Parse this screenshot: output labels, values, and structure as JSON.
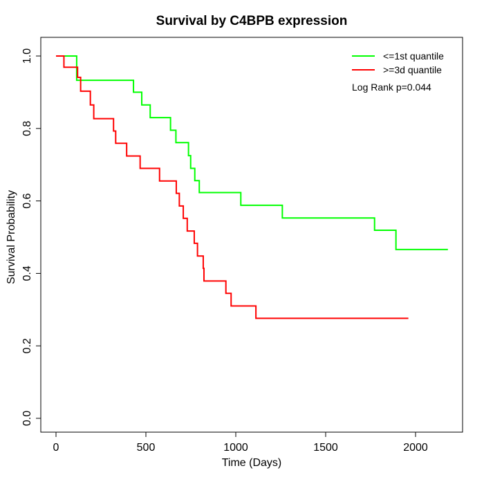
{
  "chart_data": {
    "type": "line",
    "subtype": "kaplan-meier-step",
    "title": "Survival by C4BPB expression",
    "xlabel": "Time (Days)",
    "ylabel": "Survival Probability",
    "xlim": [
      0,
      2200
    ],
    "ylim": [
      0.0,
      1.0
    ],
    "grid": false,
    "legend_position": "top-right",
    "x_ticks": {
      "values": [
        0,
        500,
        1000,
        1500,
        2000
      ],
      "labels": [
        "0",
        "500",
        "1000",
        "1500",
        "2000"
      ]
    },
    "y_ticks": {
      "values": [
        0.0,
        0.2,
        0.4,
        0.6,
        0.8,
        1.0
      ],
      "labels": [
        "0.0",
        "0.2",
        "0.4",
        "0.6",
        "0.8",
        "1.0"
      ]
    },
    "series": [
      {
        "name": "<=1st quantile",
        "color": "#00ff00",
        "start": [
          0,
          1.0
        ],
        "steps": [
          [
            115,
            0.933
          ],
          [
            431,
            0.9
          ],
          [
            477,
            0.865
          ],
          [
            524,
            0.83
          ],
          [
            637,
            0.795
          ],
          [
            667,
            0.761
          ],
          [
            737,
            0.725
          ],
          [
            749,
            0.69
          ],
          [
            772,
            0.656
          ],
          [
            797,
            0.623
          ],
          [
            1028,
            0.588
          ],
          [
            1259,
            0.553
          ],
          [
            1772,
            0.519
          ],
          [
            1891,
            0.466
          ]
        ],
        "end_time": 2180
      },
      {
        "name": ">=3d quantile",
        "color": "#ff0000",
        "start": [
          0,
          1.0
        ],
        "steps": [
          [
            44,
            0.969
          ],
          [
            120,
            0.941
          ],
          [
            137,
            0.903
          ],
          [
            191,
            0.865
          ],
          [
            210,
            0.827
          ],
          [
            320,
            0.793
          ],
          [
            332,
            0.759
          ],
          [
            393,
            0.724
          ],
          [
            468,
            0.69
          ],
          [
            576,
            0.655
          ],
          [
            669,
            0.621
          ],
          [
            686,
            0.586
          ],
          [
            708,
            0.552
          ],
          [
            730,
            0.517
          ],
          [
            769,
            0.483
          ],
          [
            787,
            0.448
          ],
          [
            819,
            0.414
          ],
          [
            823,
            0.379
          ],
          [
            945,
            0.345
          ],
          [
            974,
            0.31
          ],
          [
            1112,
            0.276
          ]
        ],
        "end_time": 1960
      }
    ],
    "annotation": "Log Rank p=0.044"
  }
}
